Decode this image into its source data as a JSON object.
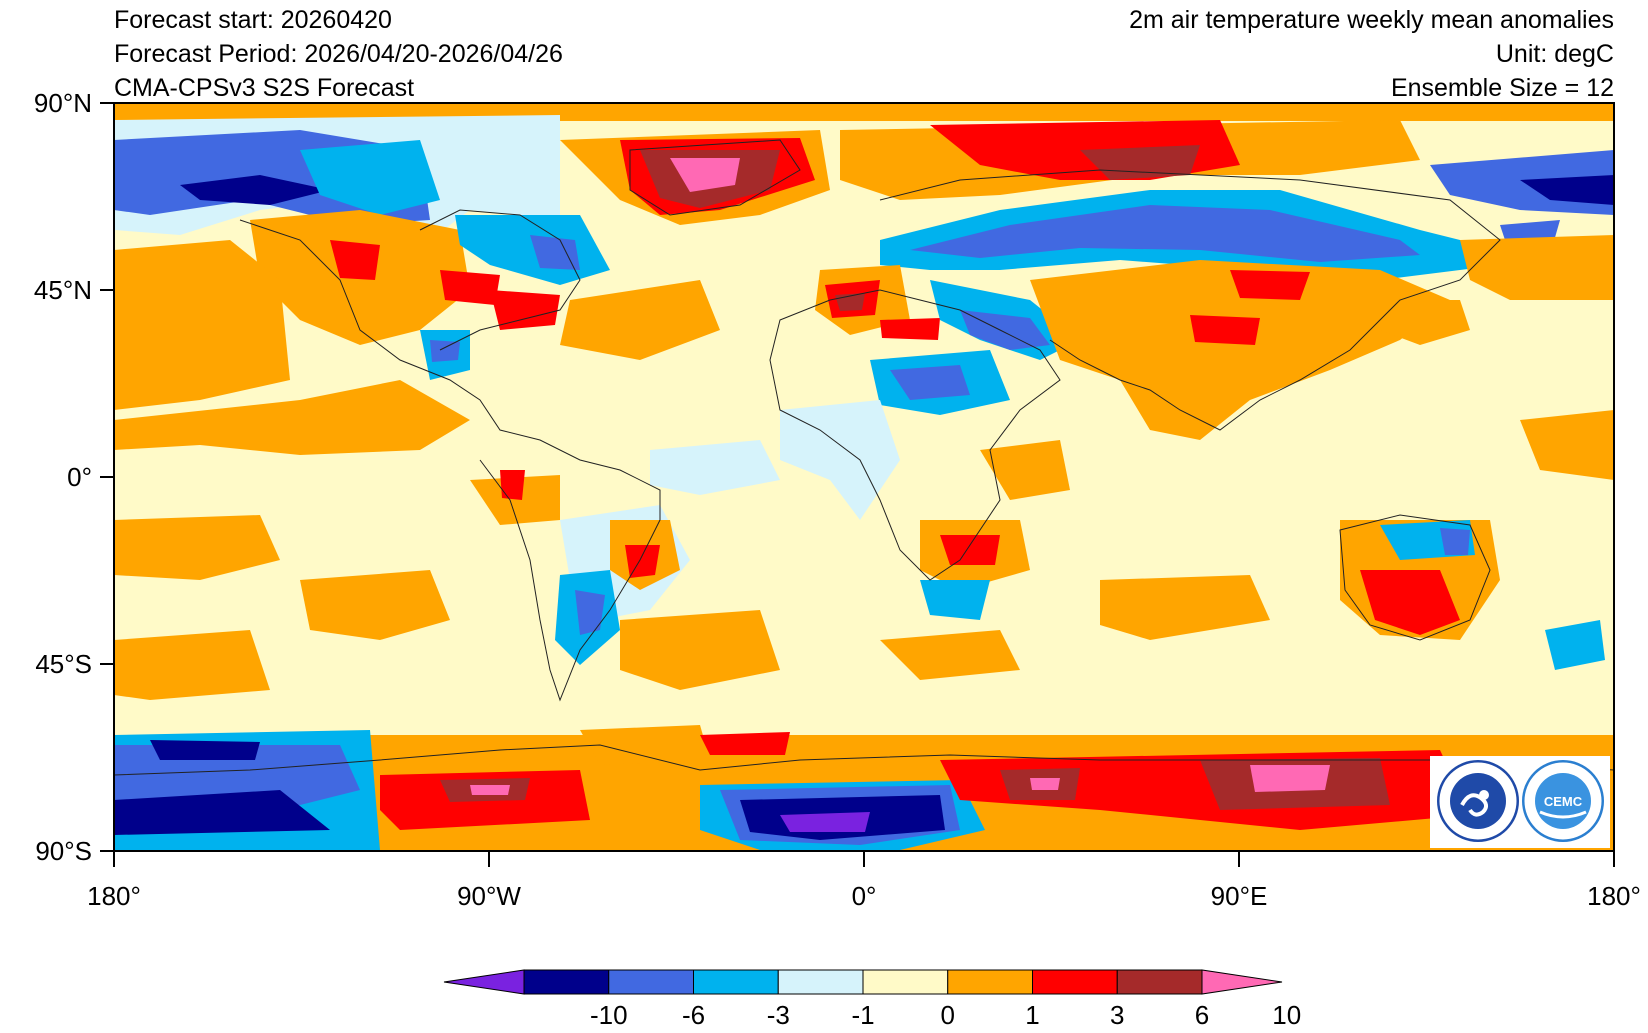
{
  "header": {
    "left_lines": [
      "Forecast start: 20260420",
      "Forecast Period: 2026/04/20-2026/04/26",
      "CMA-CPSv3 S2S Forecast"
    ],
    "right_lines": [
      "2m air temperature weekly mean anomalies",
      "Unit: degC",
      "Ensemble Size = 12"
    ]
  },
  "axes": {
    "lat_labels": [
      "90°N",
      "45°N",
      "0°",
      "45°S",
      "90°S"
    ],
    "lon_labels": [
      "180°",
      "90°W",
      "0°",
      "90°E",
      "180°"
    ]
  },
  "colorbar": {
    "levels": [
      "-10",
      "-6",
      "-3",
      "-1",
      "0",
      "1",
      "3",
      "6",
      "10"
    ],
    "colors": [
      "#7a22e0",
      "#00008b",
      "#4169e1",
      "#00b2ee",
      "#d6f3fb",
      "#fffac8",
      "#ffa500",
      "#ff0000",
      "#a52a2a",
      "#ff69b4"
    ]
  },
  "logos": {
    "left": "CMA-logo-icon",
    "right": "CEMC-logo-icon",
    "right_text": "CEMC"
  }
}
